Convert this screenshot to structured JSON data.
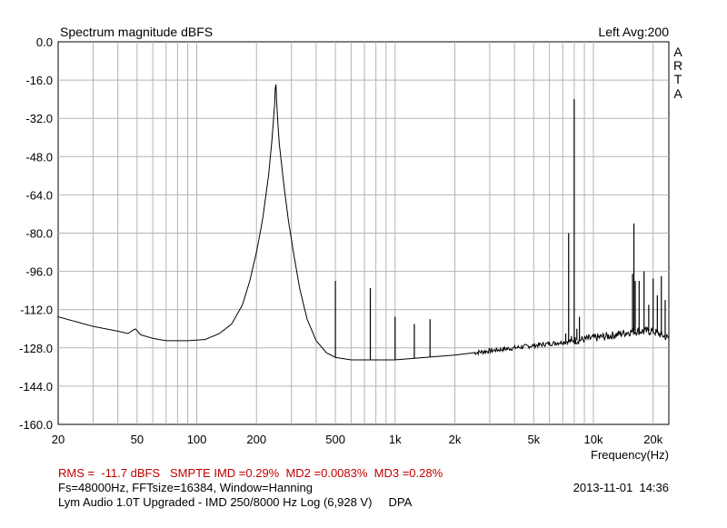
{
  "chart_data": {
    "type": "line",
    "title": "Spectrum magnitude dBFS",
    "top_right_label": "Left  Avg:200",
    "brand_letters": [
      "A",
      "R",
      "T",
      "A"
    ],
    "xlabel": "Frequency(Hz)",
    "ylabel": "",
    "x_scale": "log",
    "xlim": [
      20,
      24000
    ],
    "ylim": [
      -160,
      0
    ],
    "grid": true,
    "y_ticks": [
      "0.0",
      "-16.0",
      "-32.0",
      "-48.0",
      "-64.0",
      "-80.0",
      "-96.0",
      "-112.0",
      "-128.0",
      "-144.0",
      "-160.0"
    ],
    "x_ticks": [
      {
        "value": 20,
        "label": "20"
      },
      {
        "value": 50,
        "label": "50"
      },
      {
        "value": 100,
        "label": "100"
      },
      {
        "value": 200,
        "label": "200"
      },
      {
        "value": 500,
        "label": "500"
      },
      {
        "value": 1000,
        "label": "1k"
      },
      {
        "value": 2000,
        "label": "2k"
      },
      {
        "value": 5000,
        "label": "5k"
      },
      {
        "value": 10000,
        "label": "10k"
      },
      {
        "value": 20000,
        "label": "20k"
      }
    ],
    "series": [
      {
        "color": "#000000",
        "baseline": [
          [
            20,
            -115
          ],
          [
            30,
            -119
          ],
          [
            40,
            -121
          ],
          [
            45,
            -122
          ],
          [
            49,
            -120
          ],
          [
            52,
            -122.5
          ],
          [
            60,
            -124
          ],
          [
            70,
            -125
          ],
          [
            90,
            -125
          ],
          [
            110,
            -124.5
          ],
          [
            130,
            -122
          ],
          [
            150,
            -118
          ],
          [
            170,
            -110
          ],
          [
            185,
            -100
          ],
          [
            200,
            -88
          ],
          [
            215,
            -74
          ],
          [
            230,
            -56
          ],
          [
            240,
            -40
          ],
          [
            247,
            -26
          ],
          [
            250,
            -15
          ],
          [
            253,
            -26
          ],
          [
            260,
            -42
          ],
          [
            275,
            -60
          ],
          [
            290,
            -75
          ],
          [
            310,
            -90
          ],
          [
            330,
            -103
          ],
          [
            360,
            -116
          ],
          [
            400,
            -125
          ],
          [
            450,
            -130
          ],
          [
            500,
            -132
          ],
          [
            600,
            -133
          ],
          [
            800,
            -133
          ],
          [
            1000,
            -133
          ],
          [
            2000,
            -131
          ],
          [
            4000,
            -128
          ],
          [
            8000,
            -125
          ],
          [
            12000,
            -123
          ],
          [
            16000,
            -121
          ],
          [
            20000,
            -121
          ],
          [
            24000,
            -124
          ]
        ],
        "peaks": [
          [
            250,
            -15
          ],
          [
            500,
            -100
          ],
          [
            750,
            -103
          ],
          [
            1000,
            -115
          ],
          [
            1250,
            -118
          ],
          [
            1500,
            -116
          ],
          [
            7250,
            -122
          ],
          [
            7500,
            -80
          ],
          [
            7750,
            -123
          ],
          [
            8000,
            -24
          ],
          [
            8250,
            -120
          ],
          [
            8500,
            -115
          ],
          [
            15750,
            -97
          ],
          [
            16000,
            -76
          ],
          [
            16250,
            -100
          ],
          [
            17000,
            -100
          ],
          [
            18000,
            -96
          ],
          [
            19000,
            -110
          ],
          [
            20000,
            -99
          ],
          [
            21000,
            -106
          ],
          [
            22000,
            -98
          ],
          [
            23000,
            -108
          ]
        ]
      }
    ]
  },
  "footer": {
    "measurement": "RMS =  -11.7 dBFS   SMPTE IMD =0.29%  MD2 =0.0083%  MD3 =0.28%",
    "settings": "Fs=48000Hz, FFTsize=16384, Window=Hanning",
    "datetime": "2013-11-01  14:36",
    "description": "Lym Audio 1.0T Upgraded - IMD 250/8000 Hz Log (6,928 V)     DPA"
  }
}
